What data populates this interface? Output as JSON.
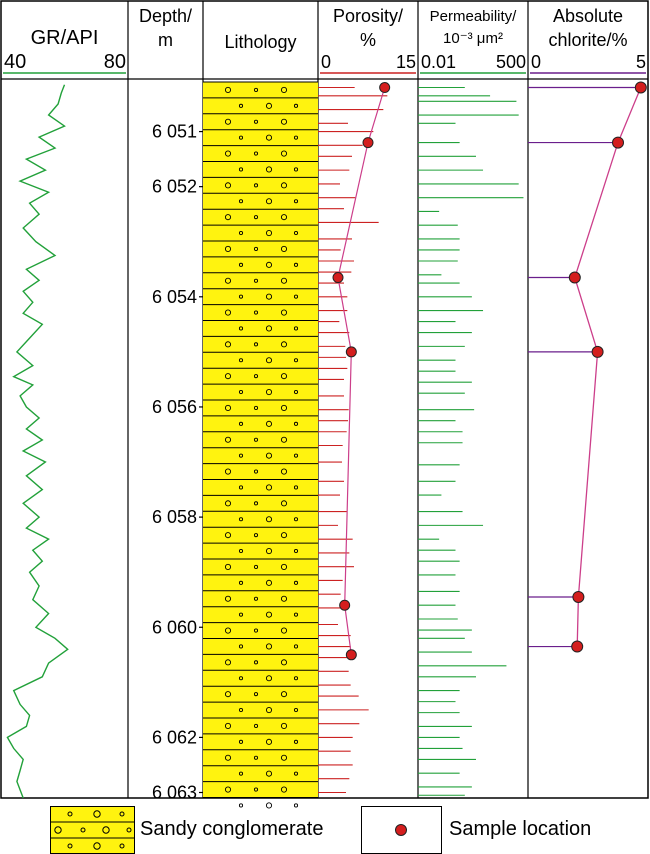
{
  "chart_data": {
    "type": "well-log",
    "depth_unit": "m",
    "depth_range": [
      6050.1,
      6063.1
    ],
    "columns": [
      {
        "key": "gr",
        "header": [
          "GR/API"
        ],
        "scale_min_label": "40",
        "scale_max_label": "80",
        "range": [
          40,
          80
        ],
        "color": "#22a13a"
      },
      {
        "key": "depth",
        "header": [
          "Depth/",
          "m"
        ]
      },
      {
        "key": "lithology",
        "header": [
          "Lithology"
        ]
      },
      {
        "key": "porosity",
        "header": [
          "Porosity/",
          "%"
        ],
        "scale_min_label": "0",
        "scale_max_label": "15",
        "range": [
          0,
          15
        ],
        "color": "#cc2222"
      },
      {
        "key": "permeability",
        "header": [
          "Permeability/",
          "10⁻³ μm²"
        ],
        "scale_min_label": "0.01",
        "scale_max_label": "500",
        "range": [
          0.01,
          500
        ],
        "log_scale": true,
        "color": "#22a13a"
      },
      {
        "key": "chlorite",
        "header": [
          "Absolute",
          "chlorite/%"
        ],
        "scale_min_label": "0",
        "scale_max_label": "5",
        "range": [
          0,
          5
        ],
        "color": "#7a1f8c"
      }
    ],
    "depth_ticks": [
      {
        "depth": 6051,
        "label": "6 051"
      },
      {
        "depth": 6052,
        "label": "6 052"
      },
      {
        "depth": 6054,
        "label": "6 054"
      },
      {
        "depth": 6056,
        "label": "6 056"
      },
      {
        "depth": 6058,
        "label": "6 058"
      },
      {
        "depth": 6060,
        "label": "6 060"
      },
      {
        "depth": 6062,
        "label": "6 062"
      },
      {
        "depth": 6063,
        "label": "6 063"
      }
    ],
    "gr_curve": {
      "depth": [
        6050.15,
        6050.3,
        6050.5,
        6050.7,
        6050.9,
        6051.1,
        6051.3,
        6051.5,
        6051.7,
        6051.9,
        6052.1,
        6052.3,
        6052.5,
        6052.75,
        6053.0,
        6053.25,
        6053.5,
        6053.7,
        6053.9,
        6054.1,
        6054.3,
        6054.5,
        6054.75,
        6055.0,
        6055.25,
        6055.45,
        6055.6,
        6055.8,
        6056.0,
        6056.2,
        6056.4,
        6056.6,
        6056.8,
        6057.0,
        6057.25,
        6057.5,
        6057.75,
        6058.0,
        6058.2,
        6058.4,
        6058.6,
        6058.8,
        6059.0,
        6059.25,
        6059.5,
        6059.75,
        6060.0,
        6060.2,
        6060.4,
        6060.65,
        6060.9,
        6061.15,
        6061.4,
        6061.6,
        6061.8,
        6062.0,
        6062.2,
        6062.4,
        6062.6,
        6062.8,
        6063.1
      ],
      "value": [
        60,
        59,
        58,
        55,
        60,
        52,
        57,
        48,
        54,
        46,
        55,
        49,
        52,
        47,
        51,
        57,
        48,
        52,
        47,
        50,
        47,
        53,
        49,
        45,
        50,
        44,
        50,
        46,
        48,
        52,
        48,
        53,
        47,
        54,
        48,
        53,
        47,
        52,
        48,
        55,
        50,
        53,
        49,
        52,
        50,
        55,
        51,
        57,
        61,
        55,
        53,
        44,
        46,
        49,
        48,
        42,
        44,
        47,
        46,
        45,
        47
      ]
    },
    "lithology_units": [
      {
        "name": "Sandy conglomerate",
        "top": 6050.1,
        "bottom": 6063.1
      }
    ],
    "porosity_bars": {
      "depth": [
        6050.2,
        6050.35,
        6050.6,
        6050.85,
        6051.0,
        6051.25,
        6051.45,
        6051.7,
        6051.95,
        6052.2,
        6052.4,
        6052.65,
        6052.95,
        6053.15,
        6053.35,
        6053.55,
        6053.75,
        6054.0,
        6054.25,
        6054.45,
        6054.65,
        6054.9,
        6055.1,
        6055.3,
        6055.5,
        6055.8,
        6056.05,
        6056.25,
        6056.45,
        6056.7,
        6057.0,
        6057.35,
        6057.6,
        6057.9,
        6058.15,
        6058.4,
        6058.65,
        6058.9,
        6059.15,
        6059.4,
        6059.65,
        6059.95,
        6060.15,
        6060.35,
        6060.55,
        6060.8,
        6061.05,
        6061.25,
        6061.5,
        6061.75,
        6062.0,
        6062.25,
        6062.5,
        6062.75,
        6063.0
      ],
      "value": [
        5.5,
        10.4,
        9.8,
        4.5,
        8.3,
        6.7,
        5.1,
        4.7,
        3.3,
        5.6,
        3.9,
        9.1,
        5.1,
        3.4,
        5.4,
        5.0,
        3.9,
        4.4,
        4.4,
        3.2,
        4.7,
        4.1,
        4.2,
        4.4,
        3.9,
        3.9,
        4.6,
        4.5,
        4.3,
        3.7,
        3.6,
        3.9,
        3.3,
        4.3,
        3.0,
        5.2,
        4.7,
        5.4,
        3.7,
        3.4,
        4.5,
        3.0,
        4.9,
        4.9,
        4.7,
        4.6,
        4.9,
        6.1,
        7.6,
        6.2,
        5.2,
        4.9,
        5.2,
        4.7,
        4.2
      ]
    },
    "permeability_bars": {
      "depth": [
        6050.2,
        6050.35,
        6050.45,
        6050.7,
        6050.85,
        6051.2,
        6051.45,
        6051.7,
        6051.95,
        6052.2,
        6052.45,
        6052.7,
        6052.95,
        6053.15,
        6053.35,
        6053.6,
        6053.75,
        6054.0,
        6054.25,
        6054.45,
        6054.65,
        6054.9,
        6055.15,
        6055.35,
        6055.55,
        6055.75,
        6056.05,
        6056.25,
        6056.45,
        6056.65,
        6057.05,
        6057.35,
        6057.6,
        6057.9,
        6058.15,
        6058.4,
        6058.6,
        6058.8,
        6059.05,
        6059.35,
        6059.6,
        6059.85,
        6060.05,
        6060.2,
        6060.45,
        6060.7,
        6060.9,
        6061.15,
        6061.35,
        6061.55,
        6061.8,
        6062.0,
        6062.2,
        6062.4,
        6062.65,
        6062.9,
        6063.05
      ],
      "value": [
        1.0,
        12,
        160,
        200,
        0.4,
        0.6,
        3,
        6,
        200,
        320,
        0.08,
        0.5,
        0.6,
        0.6,
        0.5,
        0.1,
        0.6,
        2,
        6,
        0.4,
        2,
        1,
        0.4,
        0.4,
        2,
        1,
        2.5,
        0.4,
        0.8,
        0.8,
        0.6,
        0.4,
        0.1,
        0.8,
        6,
        0.08,
        0.4,
        0.6,
        0.4,
        0.6,
        0.4,
        0.5,
        2,
        1,
        2,
        60,
        3,
        0.6,
        0.4,
        0.6,
        2,
        0.6,
        0.8,
        3,
        0.6,
        2,
        1
      ]
    },
    "porosity_samples": {
      "depth": [
        6050.2,
        6051.2,
        6053.65,
        6055.0,
        6059.6,
        6060.5
      ],
      "value": [
        10.0,
        7.5,
        3.0,
        5.0,
        4.0,
        5.0
      ]
    },
    "chlorite_samples": {
      "depth": [
        6050.2,
        6051.2,
        6053.65,
        6055.0,
        6059.45,
        6060.35
      ],
      "value": [
        4.7,
        3.75,
        1.95,
        2.9,
        2.1,
        2.05
      ]
    }
  },
  "legend": {
    "lithology_label": "Sandy conglomerate",
    "sample_label": "Sample location"
  },
  "colors": {
    "gr_curve": "#22a13a",
    "permeability": "#22a13a",
    "porosity": "#cc2222",
    "chlorite_line": "#cc3e8a",
    "chlorite_leader": "#6a1e8c",
    "sample_marker": "#d41e1e",
    "lithology_fill": "#fff30f",
    "track_border": "#000000"
  }
}
